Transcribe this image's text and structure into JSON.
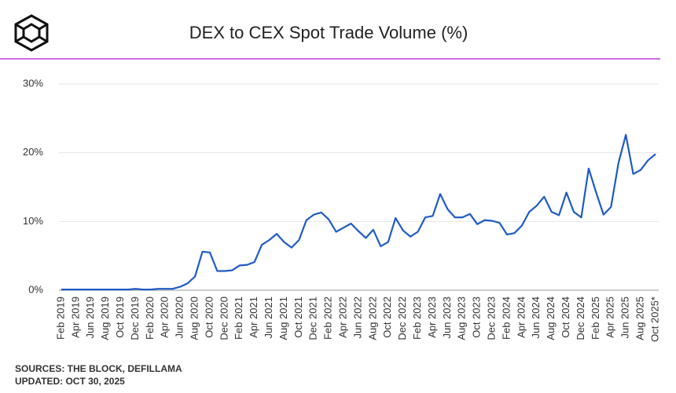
{
  "chart_data": {
    "type": "line",
    "title": "DEX to CEX Spot Trade Volume (%)",
    "source": "SOURCES: THE BLOCK, DEFILLAMA",
    "updated": "UPDATED: OCT 30, 2025",
    "categories": [
      "Feb 2019",
      null,
      "Apr 2019",
      null,
      "Jun 2019",
      null,
      "Aug 2019",
      null,
      "Oct 2019",
      null,
      "Dec 2019",
      null,
      "Feb 2020",
      null,
      "Apr 2020",
      null,
      "Jun 2020",
      null,
      "Aug 2020",
      null,
      "Oct 2020",
      null,
      "Dec 2020",
      null,
      "Feb 2021",
      null,
      "Apr 2021",
      null,
      "Jun 2021",
      null,
      "Aug 2021",
      null,
      "Oct 2021",
      null,
      "Dec 2021",
      null,
      "Feb 2022",
      null,
      "Apr 2022",
      null,
      "Jun 2022",
      null,
      "Aug 2022",
      null,
      "Oct 2022",
      null,
      "Dec 2022",
      null,
      "Feb 2023",
      null,
      "Apr 2023",
      null,
      "Jun 2023",
      null,
      "Aug 2023",
      null,
      "Oct 2023",
      null,
      "Dec 2023",
      null,
      "Feb 2024",
      null,
      "Apr 2024",
      null,
      "Jun 2024",
      null,
      "Aug 2024",
      null,
      "Oct 2024",
      null,
      "Dec 2024",
      null,
      "Feb 2025",
      null,
      "Apr 2025",
      null,
      "Jun 2025",
      null,
      "Aug 2025",
      null,
      "Oct 2025*"
    ],
    "values": [
      0.1,
      0.1,
      0.1,
      0.1,
      0.1,
      0.1,
      0.1,
      0.1,
      0.1,
      0.1,
      0.2,
      0.1,
      0.1,
      0.2,
      0.2,
      0.2,
      0.5,
      1.0,
      2.0,
      5.6,
      5.5,
      2.8,
      2.8,
      2.9,
      3.6,
      3.7,
      4.1,
      6.6,
      7.3,
      8.2,
      7.0,
      6.2,
      7.3,
      10.2,
      11.0,
      11.3,
      10.3,
      8.5,
      9.1,
      9.7,
      8.6,
      7.6,
      8.8,
      6.4,
      7.0,
      10.5,
      8.7,
      7.8,
      8.5,
      10.6,
      10.8,
      14.0,
      11.8,
      10.6,
      10.6,
      11.1,
      9.6,
      10.2,
      10.1,
      9.8,
      8.1,
      8.3,
      9.4,
      11.4,
      12.3,
      13.6,
      11.4,
      10.9,
      14.2,
      11.4,
      10.6,
      17.7,
      14.2,
      11.0,
      12.1,
      18.5,
      22.6,
      16.9,
      17.5,
      18.9,
      19.8
    ],
    "color": "#1f5bc6",
    "ylim": [
      0,
      30
    ],
    "yticks": [
      {
        "value": 0,
        "label": "0%"
      },
      {
        "value": 10,
        "label": "10%"
      },
      {
        "value": 20,
        "label": "20%"
      },
      {
        "value": 30,
        "label": "30%"
      }
    ],
    "grid": true
  }
}
